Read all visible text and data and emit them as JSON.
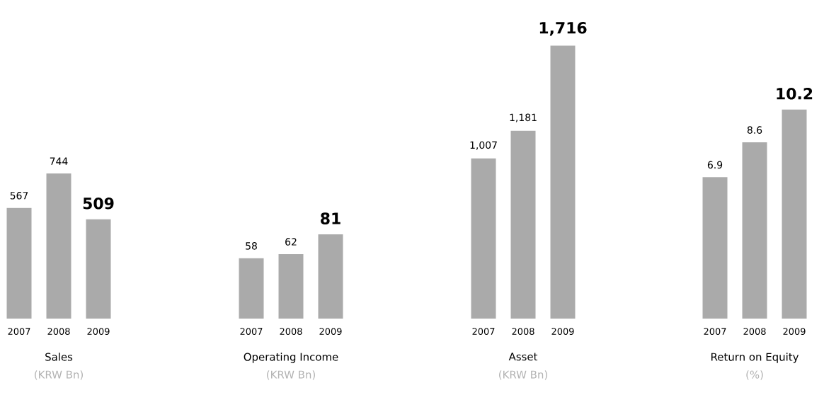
{
  "chart_data": [
    {
      "type": "bar",
      "title": "Sales",
      "subtitle": "(KRW Bn)",
      "categories": [
        "2007",
        "2008",
        "2009"
      ],
      "values": [
        567,
        744,
        509
      ],
      "value_labels": [
        "567",
        "744",
        "509"
      ],
      "color": "#aaaaaa"
    },
    {
      "type": "bar",
      "title": "Operating Income",
      "subtitle": "(KRW Bn)",
      "categories": [
        "2007",
        "2008",
        "2009"
      ],
      "values": [
        58,
        62,
        81
      ],
      "value_labels": [
        "58",
        "62",
        "81"
      ],
      "color": "#aaaaaa"
    },
    {
      "type": "bar",
      "title": "Asset",
      "subtitle": "(KRW Bn)",
      "categories": [
        "2007",
        "2008",
        "2009"
      ],
      "values": [
        1007,
        1181,
        1716
      ],
      "value_labels": [
        "1,007",
        "1,181",
        "1,716"
      ],
      "color": "#aaaaaa"
    },
    {
      "type": "bar",
      "title": "Return on Equity",
      "subtitle": "(%)",
      "categories": [
        "2007",
        "2008",
        "2009"
      ],
      "values": [
        6.9,
        8.6,
        10.2
      ],
      "value_labels": [
        "6.9",
        "8.6",
        "10.2"
      ],
      "color": "#aaaaaa"
    }
  ]
}
